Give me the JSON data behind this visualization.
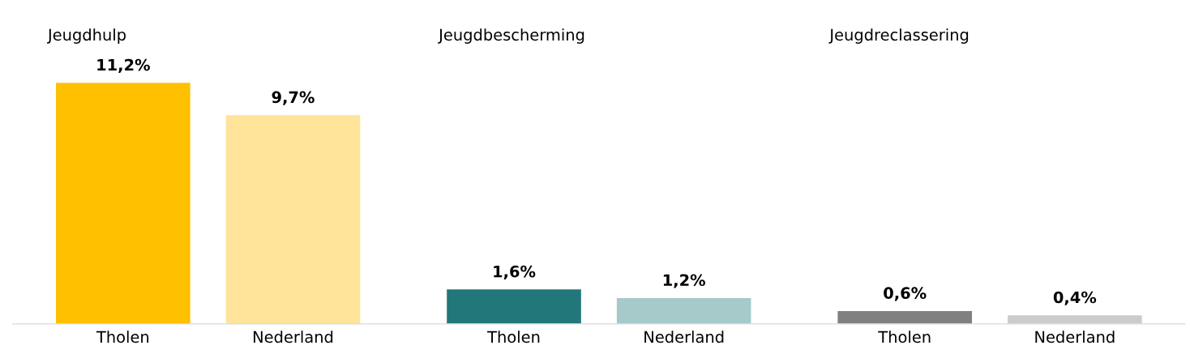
{
  "chart_data": [
    {
      "type": "bar",
      "title": "Jeugdhulp",
      "categories": [
        "Tholen",
        "Nederland"
      ],
      "values": [
        11.2,
        9.7
      ],
      "colors": [
        "#ffc000",
        "#ffe499"
      ],
      "value_labels": [
        "11,2%",
        "9,7%"
      ]
    },
    {
      "type": "bar",
      "title": "Jeugdbescherming",
      "categories": [
        "Tholen",
        "Nederland"
      ],
      "values": [
        1.6,
        1.2
      ],
      "colors": [
        "#21777a",
        "#a6c9c9"
      ],
      "value_labels": [
        "1,6%",
        "1,2%"
      ]
    },
    {
      "type": "bar",
      "title": "Jeugdreclassering",
      "categories": [
        "Tholen",
        "Nederland"
      ],
      "values": [
        0.6,
        0.4
      ],
      "colors": [
        "#808080",
        "#cccccc"
      ],
      "value_labels": [
        "0,6%",
        "0,4%"
      ]
    }
  ]
}
